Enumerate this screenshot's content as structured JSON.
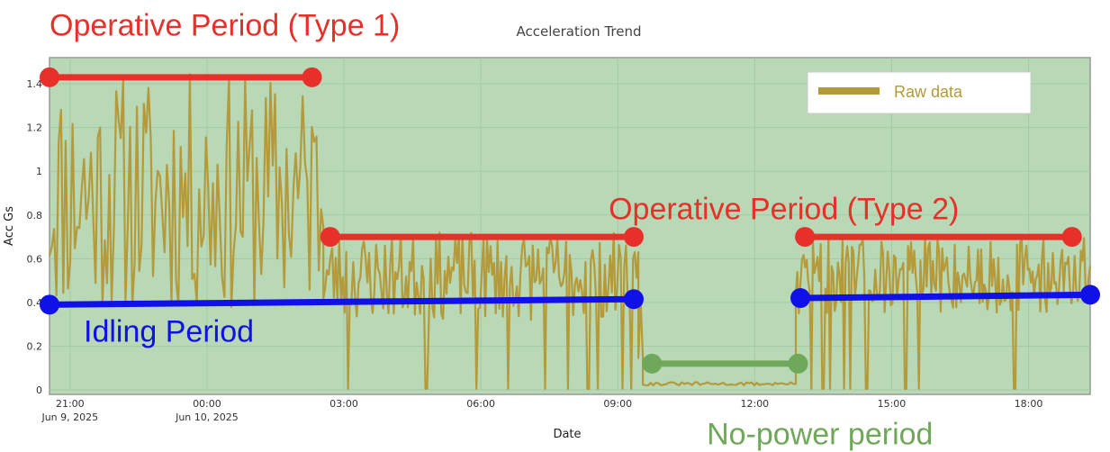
{
  "chart_data": {
    "type": "line",
    "title": "Acceleration Trend",
    "xlabel": "Date",
    "ylabel": "Acc Gs",
    "ylim": [
      0,
      1.52
    ],
    "xlim_hours": [
      20.55,
      43.35
    ],
    "y_ticks": [
      0,
      0.2,
      0.4,
      0.6,
      0.8,
      1,
      1.2,
      1.4
    ],
    "y_tick_labels": [
      "0",
      "0.2",
      "0.4",
      "0.6",
      "0.8",
      "1",
      "1.2",
      "1.4"
    ],
    "x_ticks": [
      {
        "t": 21,
        "label": "21:00",
        "sublabel": "Jun 9, 2025"
      },
      {
        "t": 24,
        "label": "00:00",
        "sublabel": "Jun 10, 2025"
      },
      {
        "t": 27,
        "label": "03:00",
        "sublabel": ""
      },
      {
        "t": 30,
        "label": "06:00",
        "sublabel": ""
      },
      {
        "t": 33,
        "label": "09:00",
        "sublabel": ""
      },
      {
        "t": 36,
        "label": "12:00",
        "sublabel": ""
      },
      {
        "t": 39,
        "label": "15:00",
        "sublabel": ""
      },
      {
        "t": 42,
        "label": "18:00",
        "sublabel": ""
      }
    ],
    "grid": true,
    "legend_position": "top-right",
    "series": [
      {
        "name": "Raw data",
        "color": "#b49a3a",
        "segments": [
          {
            "t_start": 20.55,
            "t_end": 26.55,
            "min": 0.35,
            "max": 1.45,
            "n": 120,
            "seed": 11,
            "floor_drops": []
          },
          {
            "t_start": 26.55,
            "t_end": 33.45,
            "min": 0.32,
            "max": 0.72,
            "n": 180,
            "seed": 23,
            "floor_drops": [
              27.1,
              28.8,
              29.9,
              30.6,
              31.4,
              31.9,
              32.35,
              32.55,
              33.1,
              33.3
            ]
          },
          {
            "t_start": 33.45,
            "t_end": 33.55,
            "min": 0.02,
            "max": 0.55,
            "n": 3,
            "seed": 5,
            "floor_drops": []
          },
          {
            "t_start": 33.55,
            "t_end": 36.9,
            "min": 0.02,
            "max": 0.035,
            "n": 60,
            "seed": 31,
            "floor_drops": []
          },
          {
            "t_start": 36.9,
            "t_end": 43.35,
            "min": 0.35,
            "max": 0.7,
            "n": 190,
            "seed": 47,
            "floor_drops": [
              37.25,
              37.5,
              37.65,
              37.95,
              38.1,
              38.45,
              39.3,
              39.6,
              41.7
            ]
          }
        ]
      }
    ],
    "annotations": [
      {
        "id": "operative-type1",
        "text": "Operative Period (Type 1)",
        "color": "#e8302a",
        "y": 1.43,
        "t_start": 20.55,
        "t_end": 26.3,
        "label_t": 20.55,
        "label_y": 1.62
      },
      {
        "id": "operative-type2",
        "text": "Operative Period (Type 2)",
        "color": "#e8302a",
        "y": 0.7,
        "t_start": 26.7,
        "t_end": 33.35,
        "label_t": 32.8,
        "label_y": 0.78
      },
      {
        "id": "operative-type2-b",
        "text": "",
        "color": "#e8302a",
        "y": 0.7,
        "t_start": 37.1,
        "t_end": 42.95,
        "label_t": 0,
        "label_y": 0
      },
      {
        "id": "idling",
        "text": "Idling Period",
        "color": "#1010e8",
        "y_start": 0.39,
        "y_end": 0.415,
        "t_start": 20.55,
        "t_end": 33.35,
        "label_t": 21.3,
        "label_y": 0.22
      },
      {
        "id": "idling-b",
        "text": "",
        "color": "#1010e8",
        "y_start": 0.42,
        "y_end": 0.435,
        "t_start": 37.0,
        "t_end": 43.35,
        "label_t": 0,
        "label_y": 0
      },
      {
        "id": "no-power",
        "text": "No-power period",
        "color": "#6fa85a",
        "y": 0.12,
        "t_start": 33.75,
        "t_end": 36.95,
        "label_t": 34.95,
        "label_y": -0.25
      }
    ]
  },
  "colors": {
    "plot_background": "#b8d8b6",
    "grid": "#a6c9a4",
    "frame": "#999999"
  }
}
